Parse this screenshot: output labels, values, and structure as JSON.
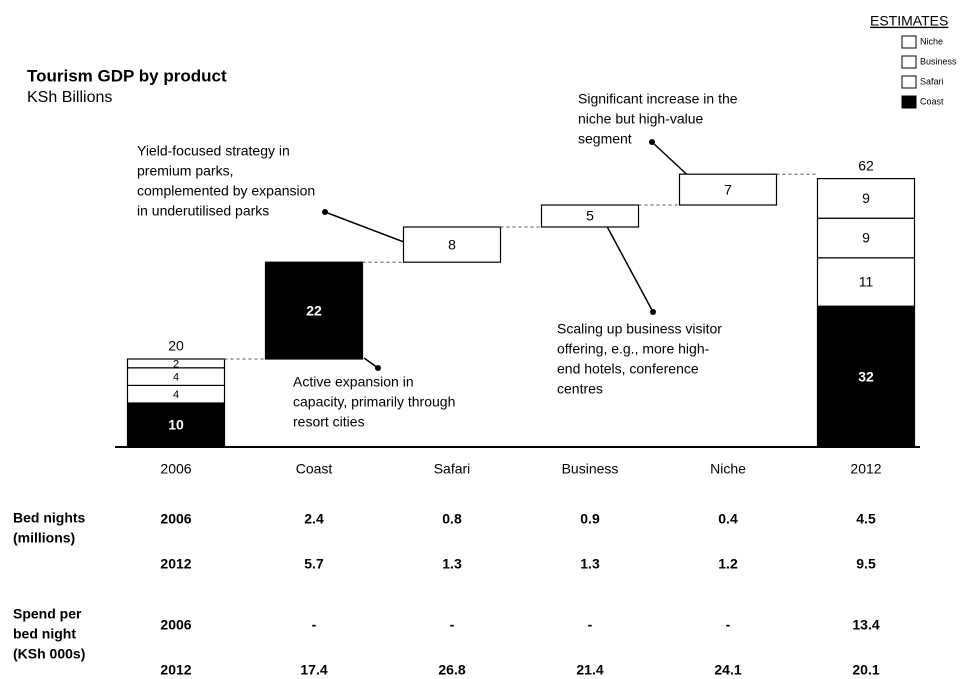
{
  "chart_data": {
    "type": "waterfall",
    "title": "Tourism GDP by product",
    "subtitle": "KSh Billions",
    "legend_title": "ESTIMATES",
    "categories": [
      "2006",
      "Coast",
      "Safari",
      "Business",
      "Niche",
      "2012"
    ],
    "series": [
      {
        "name": "Coast",
        "color": "#000000",
        "values": [
          10,
          22,
          null,
          null,
          null,
          32
        ]
      },
      {
        "name": "Safari",
        "color": "#ffffff",
        "values": [
          4,
          null,
          8,
          null,
          null,
          11
        ]
      },
      {
        "name": "Business",
        "color": "#ffffff",
        "values": [
          4,
          null,
          null,
          5,
          null,
          9
        ]
      },
      {
        "name": "Niche",
        "color": "#ffffff",
        "values": [
          2,
          null,
          null,
          null,
          7,
          9
        ]
      }
    ],
    "totals": [
      20,
      null,
      null,
      null,
      null,
      62
    ],
    "annotations": [
      {
        "lines": [
          "Yield-focused strategy in",
          "premium parks,",
          "complemented by expansion",
          "in underutilised parks"
        ]
      },
      {
        "lines": [
          "Significant increase in the",
          "niche but high-value",
          "segment"
        ]
      },
      {
        "lines": [
          "Scaling up business visitor",
          "offering, e.g., more high-",
          "end hotels, conference",
          "centres"
        ]
      },
      {
        "lines": [
          "Active expansion in",
          "capacity, primarily through",
          "resort cities"
        ]
      }
    ]
  },
  "table": {
    "rows": [
      {
        "label": [
          "Bed nights",
          "(millions)"
        ],
        "year": "2006",
        "values": [
          "2.4",
          "0.8",
          "0.9",
          "0.4",
          "4.5"
        ]
      },
      {
        "label": [],
        "year": "2012",
        "values": [
          "5.7",
          "1.3",
          "1.3",
          "1.2",
          "9.5"
        ]
      },
      {
        "label": [
          "Spend per",
          "bed night",
          "(KSh 000s)"
        ],
        "year": "2006",
        "values": [
          "-",
          "-",
          "-",
          "-",
          "13.4"
        ]
      },
      {
        "label": [],
        "year": "2012",
        "values": [
          "17.4",
          "26.8",
          "21.4",
          "24.1",
          "20.1"
        ]
      }
    ]
  }
}
